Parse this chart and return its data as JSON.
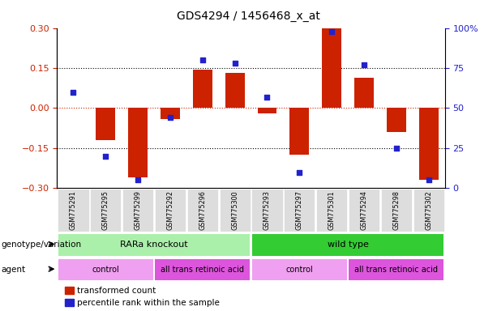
{
  "title": "GDS4294 / 1456468_x_at",
  "samples": [
    "GSM775291",
    "GSM775295",
    "GSM775299",
    "GSM775292",
    "GSM775296",
    "GSM775300",
    "GSM775293",
    "GSM775297",
    "GSM775301",
    "GSM775294",
    "GSM775298",
    "GSM775302"
  ],
  "bar_values": [
    0.0,
    -0.12,
    -0.26,
    -0.04,
    0.145,
    0.133,
    -0.02,
    -0.175,
    0.3,
    0.115,
    -0.09,
    -0.27
  ],
  "dot_values": [
    60,
    20,
    5,
    44,
    80,
    78,
    57,
    10,
    98,
    77,
    25,
    5
  ],
  "bar_color": "#cc2200",
  "dot_color": "#2222cc",
  "ylim_left": [
    -0.3,
    0.3
  ],
  "ylim_right": [
    0,
    100
  ],
  "yticks_left": [
    -0.3,
    -0.15,
    0.0,
    0.15,
    0.3
  ],
  "yticks_right": [
    0,
    25,
    50,
    75,
    100
  ],
  "genotype_groups": [
    {
      "label": "RARa knockout",
      "start": 0,
      "end": 6,
      "color": "#aaf0aa"
    },
    {
      "label": "wild type",
      "start": 6,
      "end": 12,
      "color": "#33cc33"
    }
  ],
  "agent_groups": [
    {
      "label": "control",
      "start": 0,
      "end": 3,
      "color": "#f0a0f0"
    },
    {
      "label": "all trans retinoic acid",
      "start": 3,
      "end": 6,
      "color": "#dd55dd"
    },
    {
      "label": "control",
      "start": 6,
      "end": 9,
      "color": "#f0a0f0"
    },
    {
      "label": "all trans retinoic acid",
      "start": 9,
      "end": 12,
      "color": "#dd55dd"
    }
  ],
  "legend_items": [
    {
      "label": "transformed count",
      "color": "#cc2200"
    },
    {
      "label": "percentile rank within the sample",
      "color": "#2222cc"
    }
  ],
  "row_labels": [
    "genotype/variation",
    "agent"
  ],
  "xtick_bg": "#dddddd",
  "background_color": "#ffffff"
}
